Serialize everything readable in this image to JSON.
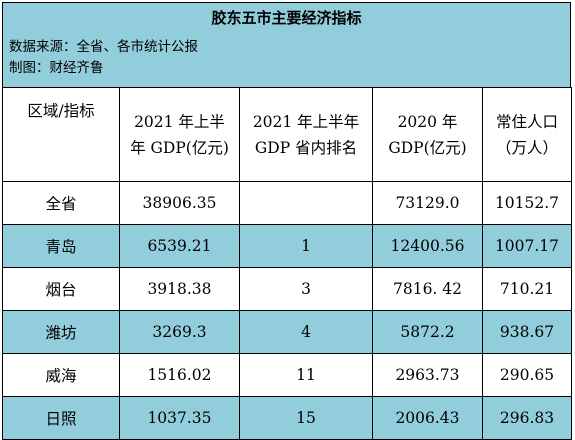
{
  "title": "胶东五市主要经济指标",
  "source": "数据来源：全省、各市统计公报",
  "maker": "制图：财经齐鲁",
  "headers": {
    "region": "区域/指标",
    "gdp2021_l1": "2021 年上半",
    "gdp2021_l2": "年 GDP(亿元)",
    "rank_l1": "2021 年上半年",
    "rank_l2": "GDP 省内排名",
    "gdp2020_l1": "2020 年",
    "gdp2020_l2": "GDP(亿元)",
    "pop_l1": "常住人口",
    "pop_l2": "（万人）"
  },
  "rows": [
    {
      "region": "全省",
      "gdp2021": "38906.35",
      "rank": "",
      "gdp2020": "73129.0",
      "pop": "10152.7"
    },
    {
      "region": "青岛",
      "gdp2021": "6539.21",
      "rank": "1",
      "gdp2020": "12400.56",
      "pop": "1007.17"
    },
    {
      "region": "烟台",
      "gdp2021": "3918.38",
      "rank": "3",
      "gdp2020": "7816. 42",
      "pop": "710.21"
    },
    {
      "region": "潍坊",
      "gdp2021": "3269.3",
      "rank": "4",
      "gdp2020": "5872.2",
      "pop": "938.67"
    },
    {
      "region": "威海",
      "gdp2021": "1516.02",
      "rank": "11",
      "gdp2020": "2963.73",
      "pop": "290.65"
    },
    {
      "region": "日照",
      "gdp2021": "1037.35",
      "rank": "15",
      "gdp2020": "2006.43",
      "pop": "296.83"
    }
  ]
}
